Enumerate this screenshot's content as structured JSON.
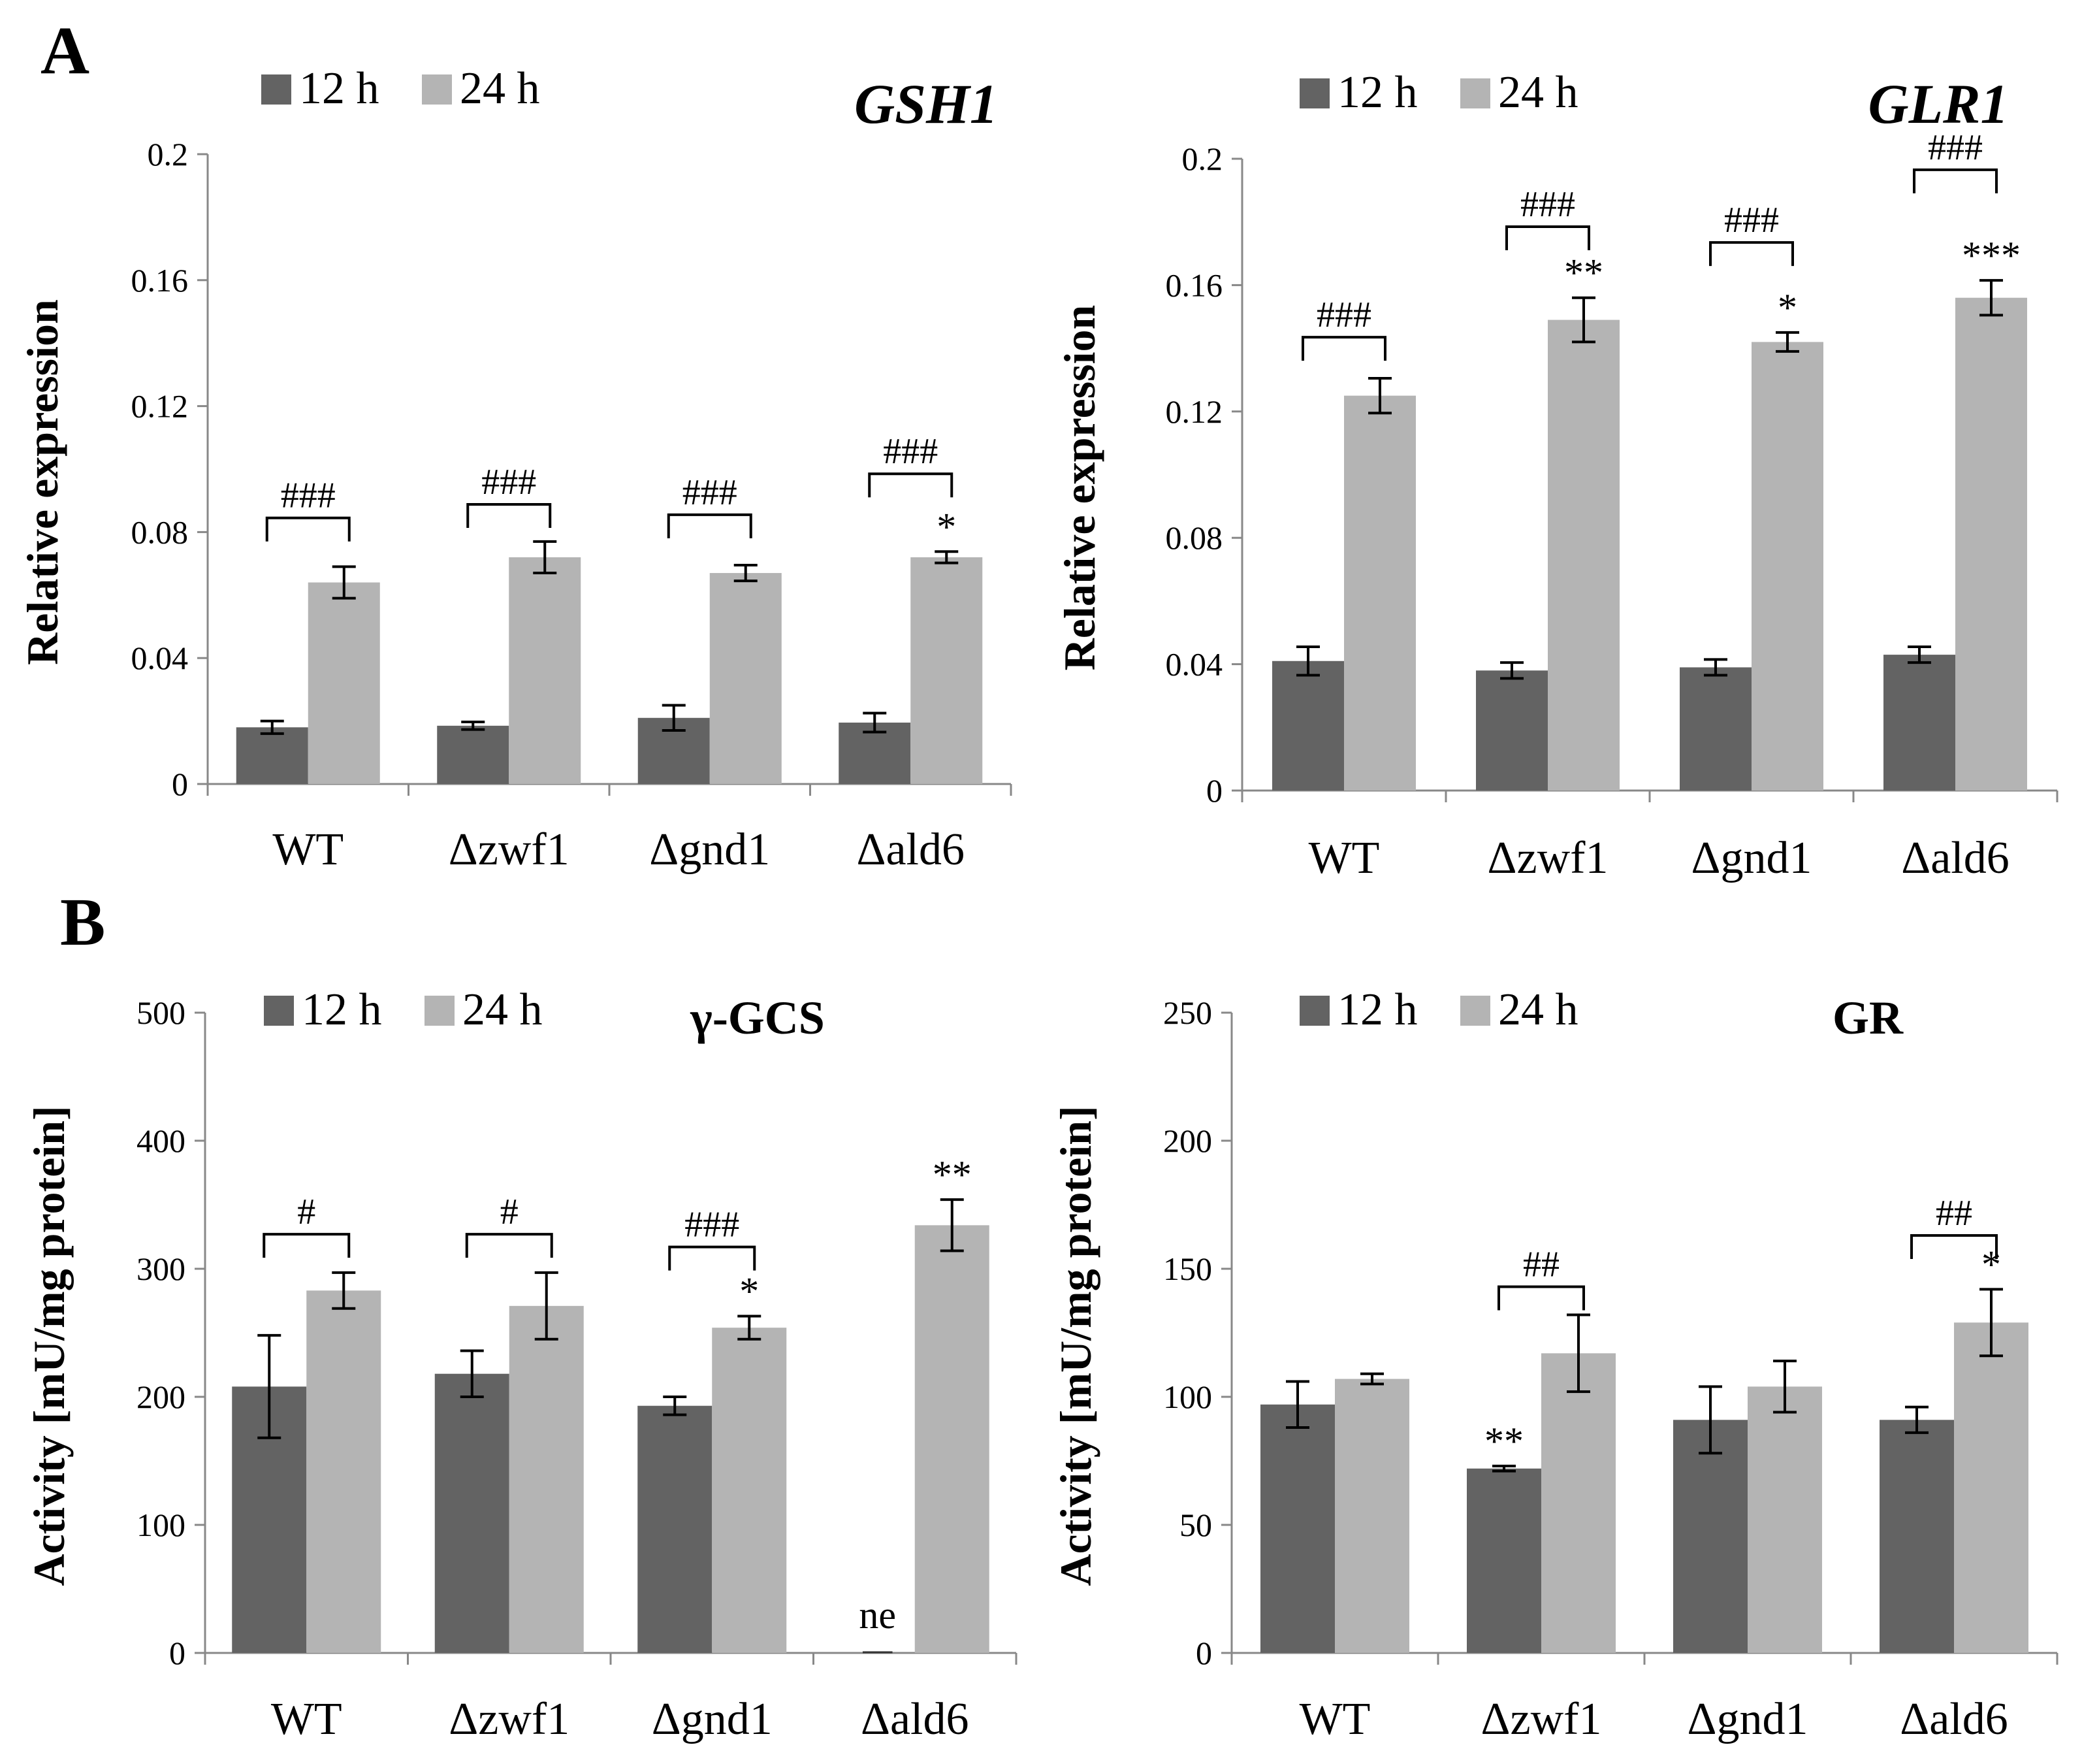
{
  "panel_labels": [
    "A",
    "B"
  ],
  "colors": {
    "series_12h": "#636363",
    "series_24h": "#b4b4b4",
    "axis": "#888888",
    "text": "#000000"
  },
  "chart_data": [
    {
      "id": "gsh1",
      "panel": "A",
      "type": "bar",
      "title": "GSH1",
      "title_style": "italic",
      "ylabel": "Relative expression",
      "xlabel": "",
      "ylim": [
        0,
        0.2
      ],
      "yticks": [
        "0",
        "0.04",
        "0.08",
        "0.12",
        "0.16",
        "0.2"
      ],
      "categories": [
        "WT",
        "Δzwf1",
        "Δgnd1",
        "Δald6"
      ],
      "series": [
        {
          "name": "12 h",
          "values": [
            0.018,
            0.0185,
            0.021,
            0.0195
          ],
          "errors": [
            0.002,
            0.0012,
            0.004,
            0.003
          ]
        },
        {
          "name": "24 h",
          "values": [
            0.064,
            0.072,
            0.067,
            0.072
          ],
          "errors": [
            0.005,
            0.005,
            0.0025,
            0.0018
          ]
        }
      ],
      "brackets": [
        {
          "category": 0,
          "label": "###",
          "level": 0.0845
        },
        {
          "category": 1,
          "label": "###",
          "level": 0.0888
        },
        {
          "category": 2,
          "label": "###",
          "level": 0.0855
        },
        {
          "category": 3,
          "label": "###",
          "level": 0.0985
        }
      ],
      "stars": [
        {
          "category": 3,
          "series": 1,
          "label": "*"
        }
      ],
      "annotations": []
    },
    {
      "id": "glr1",
      "panel": "A",
      "type": "bar",
      "title": "GLR1",
      "title_style": "italic",
      "ylabel": "Relative expression",
      "xlabel": "",
      "ylim": [
        0,
        0.2
      ],
      "yticks": [
        "0",
        "0.04",
        "0.08",
        "0.12",
        "0.16",
        "0.2"
      ],
      "categories": [
        "WT",
        "Δzwf1",
        "Δgnd1",
        "Δald6"
      ],
      "series": [
        {
          "name": "12 h",
          "values": [
            0.041,
            0.038,
            0.039,
            0.043
          ],
          "errors": [
            0.0045,
            0.0025,
            0.0025,
            0.0025
          ]
        },
        {
          "name": "24 h",
          "values": [
            0.125,
            0.149,
            0.142,
            0.156
          ],
          "errors": [
            0.0055,
            0.007,
            0.003,
            0.0055
          ]
        }
      ],
      "brackets": [
        {
          "category": 0,
          "label": "###",
          "level": 0.1435
        },
        {
          "category": 1,
          "label": "###",
          "level": 0.1785
        },
        {
          "category": 2,
          "label": "###",
          "level": 0.1735
        },
        {
          "category": 3,
          "label": "###",
          "level": 0.1965
        }
      ],
      "stars": [
        {
          "category": 1,
          "series": 1,
          "label": "**"
        },
        {
          "category": 2,
          "series": 1,
          "label": "*"
        },
        {
          "category": 3,
          "series": 1,
          "label": "***"
        }
      ],
      "annotations": []
    },
    {
      "id": "ggcs",
      "panel": "B",
      "type": "bar",
      "title": "γ-GCS",
      "title_style": "plain",
      "ylabel": "Activity [mU/mg protein]",
      "xlabel": "",
      "ylim": [
        0,
        500
      ],
      "yticks": [
        "0",
        "100",
        "200",
        "300",
        "400",
        "500"
      ],
      "categories": [
        "WT",
        "Δzwf1",
        "Δgnd1",
        "Δald6"
      ],
      "series": [
        {
          "name": "12 h",
          "values": [
            208,
            218,
            193,
            0
          ],
          "errors": [
            40,
            18,
            7,
            0
          ]
        },
        {
          "name": "24 h",
          "values": [
            283,
            271,
            254,
            334
          ],
          "errors": [
            14,
            26,
            9,
            20
          ]
        }
      ],
      "brackets": [
        {
          "category": 0,
          "label": "#",
          "level": 327
        },
        {
          "category": 1,
          "label": "#",
          "level": 327
        },
        {
          "category": 2,
          "label": "###",
          "level": 317
        }
      ],
      "stars": [
        {
          "category": 2,
          "series": 1,
          "label": "*"
        },
        {
          "category": 3,
          "series": 1,
          "label": "**"
        }
      ],
      "annotations": [
        {
          "category": 3,
          "series": 0,
          "label": "ne"
        }
      ]
    },
    {
      "id": "gr",
      "panel": "B",
      "type": "bar",
      "title": "GR",
      "title_style": "plain",
      "ylabel": "Activity [mU/mg protein]",
      "xlabel": "",
      "ylim": [
        0,
        250
      ],
      "yticks": [
        "0",
        "50",
        "100",
        "150",
        "200",
        "250"
      ],
      "categories": [
        "WT",
        "Δzwf1",
        "Δgnd1",
        "Δald6"
      ],
      "series": [
        {
          "name": "12 h",
          "values": [
            97,
            72,
            91,
            91
          ],
          "errors": [
            9,
            1,
            13,
            5
          ]
        },
        {
          "name": "24 h",
          "values": [
            107,
            117,
            104,
            129
          ],
          "errors": [
            2,
            15,
            10,
            13
          ]
        }
      ],
      "brackets": [
        {
          "category": 1,
          "label": "##",
          "level": 143
        },
        {
          "category": 3,
          "label": "##",
          "level": 163
        }
      ],
      "stars": [
        {
          "category": 1,
          "series": 0,
          "label": "**"
        },
        {
          "category": 3,
          "series": 1,
          "label": "*"
        }
      ],
      "annotations": []
    }
  ]
}
